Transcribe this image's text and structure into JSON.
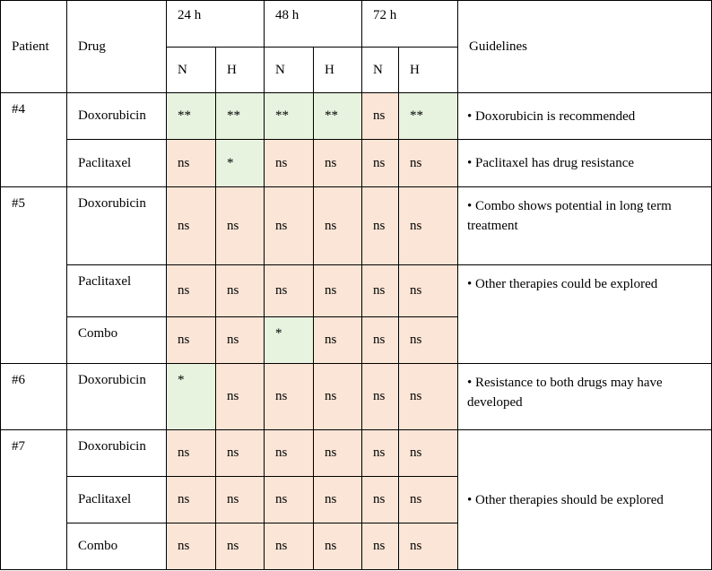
{
  "header": {
    "patient": "Patient",
    "drug": "Drug",
    "times": [
      "24 h",
      "48 h",
      "72 h"
    ],
    "sub": [
      "N",
      "H",
      "N",
      "H",
      "N",
      "H"
    ],
    "guidelines": "Guidelines"
  },
  "rows": [
    {
      "patient": "#4",
      "drug": "Doxorubicin",
      "values": [
        "**",
        "**",
        "**",
        "**",
        "ns",
        "**"
      ],
      "guideline": "• Doxorubicin is recommended"
    },
    {
      "patient": "",
      "drug": "Paclitaxel",
      "values": [
        "ns",
        "*",
        "ns",
        "ns",
        "ns",
        "ns"
      ],
      "guideline": "• Paclitaxel has drug resistance"
    },
    {
      "patient": "#5",
      "drug": "Doxorubicin",
      "values": [
        "ns",
        "ns",
        "ns",
        "ns",
        "ns",
        "ns"
      ],
      "guideline": "• Combo shows potential in long term treatment"
    },
    {
      "patient": "",
      "drug": "Paclitaxel",
      "values": [
        "ns",
        "ns",
        "ns",
        "ns",
        "ns",
        "ns"
      ],
      "guideline": "• Other therapies could be explored"
    },
    {
      "patient": "",
      "drug": "Combo",
      "values": [
        "ns",
        "ns",
        "*",
        "ns",
        "ns",
        "ns"
      ],
      "guideline": ""
    },
    {
      "patient": "#6",
      "drug": "Doxorubicin",
      "values": [
        "*",
        "ns",
        "ns",
        "ns",
        "ns",
        "ns"
      ],
      "guideline": "• Resistance to both drugs may have developed"
    },
    {
      "patient": "#7",
      "drug": "Doxorubicin",
      "values": [
        "ns",
        "ns",
        "ns",
        "ns",
        "ns",
        "ns"
      ],
      "guideline": "• Other therapies should be explored"
    },
    {
      "patient": "",
      "drug": "Paclitaxel",
      "values": [
        "ns",
        "ns",
        "ns",
        "ns",
        "ns",
        "ns"
      ],
      "guideline": ""
    },
    {
      "patient": "",
      "drug": "Combo",
      "values": [
        "ns",
        "ns",
        "ns",
        "ns",
        "ns",
        "ns"
      ],
      "guideline": ""
    }
  ],
  "colors": {
    "significant": "#e8f3df",
    "not_significant": "#fbe5d6",
    "border": "#000000"
  }
}
